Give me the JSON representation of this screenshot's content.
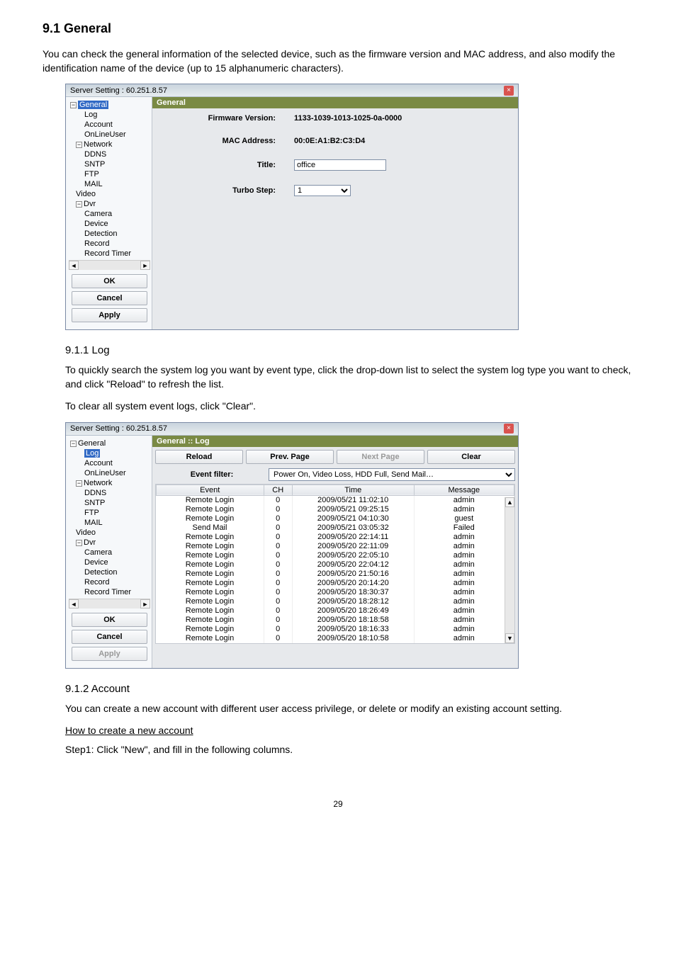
{
  "section": {
    "title": "9.1 General",
    "intro": "You can check the general information of the selected device, such as the firmware version and MAC address, and also modify the identification name of the device (up to 15 alphanumeric characters)."
  },
  "win1": {
    "title": "Server Setting : 60.251.8.57",
    "header": "General",
    "tree": {
      "root": "General",
      "items1": [
        "Log",
        "Account",
        "OnLineUser"
      ],
      "network": "Network",
      "netitems": [
        "DDNS",
        "SNTP",
        "FTP",
        "MAIL"
      ],
      "video": "Video",
      "dvr": "Dvr",
      "dvritems": [
        "Camera",
        "Device",
        "Detection",
        "Record",
        "Record Timer"
      ]
    },
    "buttons": {
      "ok": "OK",
      "cancel": "Cancel",
      "apply": "Apply"
    },
    "fields": {
      "firmware_label": "Firmware Version:",
      "firmware_value": "1133-1039-1013-1025-0a-0000",
      "mac_label": "MAC Address:",
      "mac_value": "00:0E:A1:B2:C3:D4",
      "title_label": "Title:",
      "title_value": "office",
      "turbo_label": "Turbo Step:",
      "turbo_value": "1"
    }
  },
  "sub1": {
    "heading": "9.1.1 Log",
    "p1": "To quickly search the system log you want by event type, click the drop-down list to select the system log type you want to check, and click \"Reload\" to refresh the list.",
    "p2": "To clear all system event logs, click \"Clear\"."
  },
  "win2": {
    "title": "Server Setting : 60.251.8.57",
    "header": "General :: Log",
    "toolbar": {
      "reload": "Reload",
      "prev": "Prev. Page",
      "next": "Next Page",
      "clear": "Clear"
    },
    "filter_label": "Event filter:",
    "filter_value": "Power On, Video Loss, HDD Full, Send Mail…",
    "columns": {
      "event": "Event",
      "ch": "CH",
      "time": "Time",
      "message": "Message"
    },
    "rows": [
      {
        "event": "Remote Login",
        "ch": "0",
        "time": "2009/05/21 11:02:10",
        "msg": "admin"
      },
      {
        "event": "Remote Login",
        "ch": "0",
        "time": "2009/05/21 09:25:15",
        "msg": "admin"
      },
      {
        "event": "Remote Login",
        "ch": "0",
        "time": "2009/05/21 04:10:30",
        "msg": "guest"
      },
      {
        "event": "Send Mail",
        "ch": "0",
        "time": "2009/05/21 03:05:32",
        "msg": "Failed"
      },
      {
        "event": "Remote Login",
        "ch": "0",
        "time": "2009/05/20 22:14:11",
        "msg": "admin"
      },
      {
        "event": "Remote Login",
        "ch": "0",
        "time": "2009/05/20 22:11:09",
        "msg": "admin"
      },
      {
        "event": "Remote Login",
        "ch": "0",
        "time": "2009/05/20 22:05:10",
        "msg": "admin"
      },
      {
        "event": "Remote Login",
        "ch": "0",
        "time": "2009/05/20 22:04:12",
        "msg": "admin"
      },
      {
        "event": "Remote Login",
        "ch": "0",
        "time": "2009/05/20 21:50:16",
        "msg": "admin"
      },
      {
        "event": "Remote Login",
        "ch": "0",
        "time": "2009/05/20 20:14:20",
        "msg": "admin"
      },
      {
        "event": "Remote Login",
        "ch": "0",
        "time": "2009/05/20 18:30:37",
        "msg": "admin"
      },
      {
        "event": "Remote Login",
        "ch": "0",
        "time": "2009/05/20 18:28:12",
        "msg": "admin"
      },
      {
        "event": "Remote Login",
        "ch": "0",
        "time": "2009/05/20 18:26:49",
        "msg": "admin"
      },
      {
        "event": "Remote Login",
        "ch": "0",
        "time": "2009/05/20 18:18:58",
        "msg": "admin"
      },
      {
        "event": "Remote Login",
        "ch": "0",
        "time": "2009/05/20 18:16:33",
        "msg": "admin"
      },
      {
        "event": "Remote Login",
        "ch": "0",
        "time": "2009/05/20 18:10:58",
        "msg": "admin"
      }
    ],
    "tree_selected": "Log",
    "buttons": {
      "ok": "OK",
      "cancel": "Cancel",
      "apply": "Apply"
    }
  },
  "sub2": {
    "heading": "9.1.2 Account",
    "p1": "You can create a new account with different user access privilege, or delete or modify an existing account setting.",
    "howto": "How to create a new account",
    "step1": "Step1: Click \"New\", and fill in the following columns."
  },
  "page_number": "29"
}
